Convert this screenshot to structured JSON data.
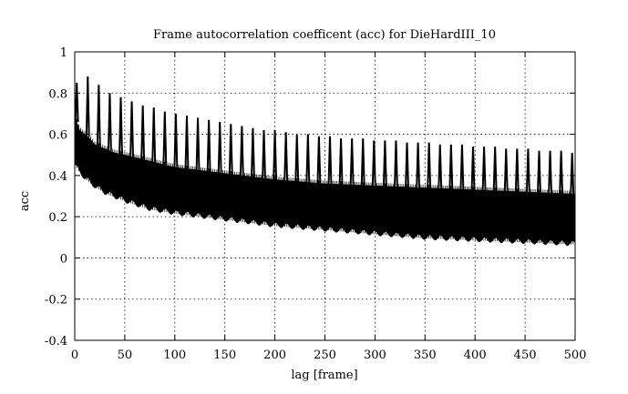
{
  "chart_data": {
    "type": "line",
    "title": "Frame autocorrelation coefficent (acc) for DieHardIII_10",
    "xlabel": "lag [frame]",
    "ylabel": "acc",
    "xlim": [
      0,
      500
    ],
    "ylim": [
      -0.4,
      1
    ],
    "xticks": [
      0,
      50,
      100,
      150,
      200,
      250,
      300,
      350,
      400,
      450,
      500
    ],
    "yticks": [
      -0.4,
      -0.2,
      0,
      0.2,
      0.4,
      0.6,
      0.8,
      1
    ],
    "ytick_labels": [
      "-0.4",
      "-0.2",
      "0",
      "0.2",
      "0.4",
      "0.6",
      "0.8",
      "1"
    ],
    "grid": true,
    "series_color": "#000000",
    "series": [
      {
        "envelope_x": [
          0,
          2,
          5,
          10,
          15,
          20,
          30,
          40,
          50,
          75,
          100,
          150,
          200,
          250,
          300,
          350,
          400,
          450,
          500
        ],
        "lower": [
          0.45,
          0.44,
          0.42,
          0.39,
          0.37,
          0.35,
          0.32,
          0.3,
          0.28,
          0.24,
          0.22,
          0.19,
          0.16,
          0.14,
          0.12,
          0.1,
          0.09,
          0.08,
          0.07
        ],
        "upper": [
          0.7,
          0.66,
          0.62,
          0.6,
          0.58,
          0.55,
          0.53,
          0.51,
          0.5,
          0.47,
          0.44,
          0.41,
          0.38,
          0.36,
          0.35,
          0.34,
          0.33,
          0.32,
          0.31
        ],
        "peak_x": [
          2,
          13,
          24,
          35,
          46,
          57,
          68,
          79,
          90,
          101,
          112,
          123,
          134,
          145,
          156,
          167,
          178,
          189,
          200,
          211,
          222,
          233,
          244,
          255,
          266,
          277,
          288,
          299,
          310,
          321,
          332,
          343,
          354,
          365,
          376,
          387,
          398,
          409,
          420,
          431,
          442,
          453,
          464,
          475,
          486,
          497
        ],
        "peak_y": [
          0.85,
          0.88,
          0.84,
          0.8,
          0.78,
          0.76,
          0.74,
          0.73,
          0.71,
          0.7,
          0.69,
          0.68,
          0.67,
          0.66,
          0.65,
          0.64,
          0.63,
          0.62,
          0.62,
          0.61,
          0.6,
          0.6,
          0.59,
          0.59,
          0.58,
          0.58,
          0.58,
          0.57,
          0.57,
          0.57,
          0.56,
          0.56,
          0.56,
          0.55,
          0.55,
          0.55,
          0.54,
          0.54,
          0.54,
          0.53,
          0.53,
          0.53,
          0.52,
          0.52,
          0.52,
          0.51
        ]
      }
    ]
  }
}
